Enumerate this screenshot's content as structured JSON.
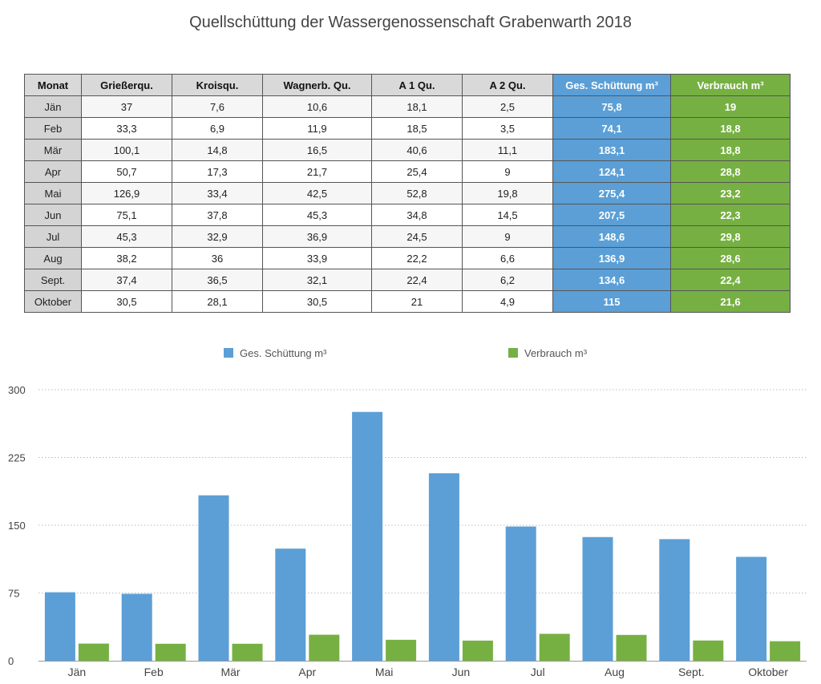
{
  "title": "Quellschüttung der Wassergenossenschaft Grabenwarth 2018",
  "table": {
    "headers": [
      "Monat",
      "Grießerqu.",
      "Kroisqu.",
      "Wagnerb. Qu.",
      "A 1 Qu.",
      "A 2 Qu.",
      "Ges. Schüttung m³",
      "Verbrauch m³"
    ],
    "rows": [
      [
        "Jän",
        "37",
        "7,6",
        "10,6",
        "18,1",
        "2,5",
        "75,8",
        "19"
      ],
      [
        "Feb",
        "33,3",
        "6,9",
        "11,9",
        "18,5",
        "3,5",
        "74,1",
        "18,8"
      ],
      [
        "Mär",
        "100,1",
        "14,8",
        "16,5",
        "40,6",
        "11,1",
        "183,1",
        "18,8"
      ],
      [
        "Apr",
        "50,7",
        "17,3",
        "21,7",
        "25,4",
        "9",
        "124,1",
        "28,8"
      ],
      [
        "Mai",
        "126,9",
        "33,4",
        "42,5",
        "52,8",
        "19,8",
        "275,4",
        "23,2"
      ],
      [
        "Jun",
        "75,1",
        "37,8",
        "45,3",
        "34,8",
        "14,5",
        "207,5",
        "22,3"
      ],
      [
        "Jul",
        "45,3",
        "32,9",
        "36,9",
        "24,5",
        "9",
        "148,6",
        "29,8"
      ],
      [
        "Aug",
        "38,2",
        "36",
        "33,9",
        "22,2",
        "6,6",
        "136,9",
        "28,6"
      ],
      [
        "Sept.",
        "37,4",
        "36,5",
        "32,1",
        "22,4",
        "6,2",
        "134,6",
        "22,4"
      ],
      [
        "Oktober",
        "30,5",
        "28,1",
        "30,5",
        "21",
        "4,9",
        "115",
        "21,6"
      ]
    ]
  },
  "colors": {
    "ges": "#5b9fd6",
    "verbrauch": "#76b043"
  },
  "chart_data": {
    "type": "bar",
    "categories": [
      "Jän",
      "Feb",
      "Mär",
      "Apr",
      "Mai",
      "Jun",
      "Jul",
      "Aug",
      "Sept.",
      "Oktober"
    ],
    "series": [
      {
        "name": "Ges. Schüttung m³",
        "values": [
          75.8,
          74.1,
          183.1,
          124.1,
          275.4,
          207.5,
          148.6,
          136.9,
          134.6,
          115
        ]
      },
      {
        "name": "Verbrauch m³",
        "values": [
          19,
          18.8,
          18.8,
          28.8,
          23.2,
          22.3,
          29.8,
          28.6,
          22.4,
          21.6
        ]
      }
    ],
    "ylim": [
      0,
      300
    ],
    "yticks": [
      "0",
      "75",
      "150",
      "225",
      "300"
    ],
    "grid": true,
    "legend": "top-center"
  }
}
